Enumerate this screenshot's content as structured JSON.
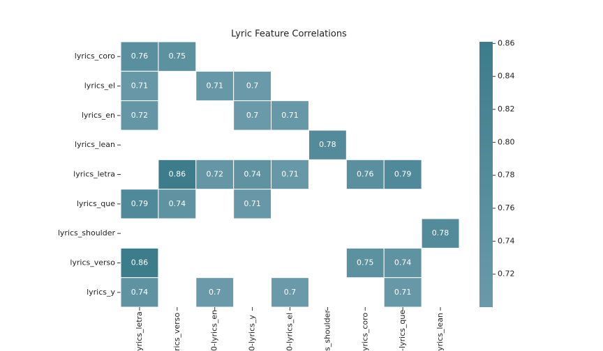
{
  "chart_data": {
    "type": "heatmap",
    "title": "Lyric Feature Correlations",
    "x": [
      "yrics_letra",
      "rics_verso",
      "0-lyrics_en",
      "0-lyrics_y",
      "0-lyrics_el",
      "s_shoulder",
      "yrics_coro",
      "-lyrics_que",
      "yrics_lean"
    ],
    "y": [
      "lyrics_coro",
      "lyrics_el",
      "lyrics_en",
      "lyrics_lean",
      "lyrics_letra",
      "lyrics_que",
      "lyrics_shoulder",
      "lyrics_verso",
      "lyrics_y"
    ],
    "values": [
      [
        0.76,
        0.75,
        null,
        null,
        null,
        null,
        null,
        null,
        null
      ],
      [
        0.71,
        null,
        0.71,
        0.7,
        null,
        null,
        null,
        null,
        null
      ],
      [
        0.72,
        null,
        null,
        0.7,
        0.71,
        null,
        null,
        null,
        null
      ],
      [
        null,
        null,
        null,
        null,
        null,
        0.78,
        null,
        null,
        null
      ],
      [
        null,
        0.86,
        0.72,
        0.74,
        0.71,
        null,
        0.76,
        0.79,
        null
      ],
      [
        0.79,
        0.74,
        null,
        0.71,
        null,
        null,
        null,
        null,
        null
      ],
      [
        null,
        null,
        null,
        null,
        null,
        null,
        null,
        null,
        0.78
      ],
      [
        0.86,
        null,
        null,
        null,
        null,
        null,
        0.75,
        0.74,
        null
      ],
      [
        0.74,
        null,
        0.7,
        null,
        0.7,
        null,
        null,
        0.71,
        null
      ]
    ],
    "zlim": [
      0.7,
      0.861
    ],
    "zticks": [
      0.72,
      0.74,
      0.76,
      0.78,
      {
        "value": 0.8,
        "label": "0.80"
      },
      0.82,
      0.84,
      0.86
    ],
    "colors": [
      "#6a9aaa",
      "#3c7c8b"
    ]
  }
}
